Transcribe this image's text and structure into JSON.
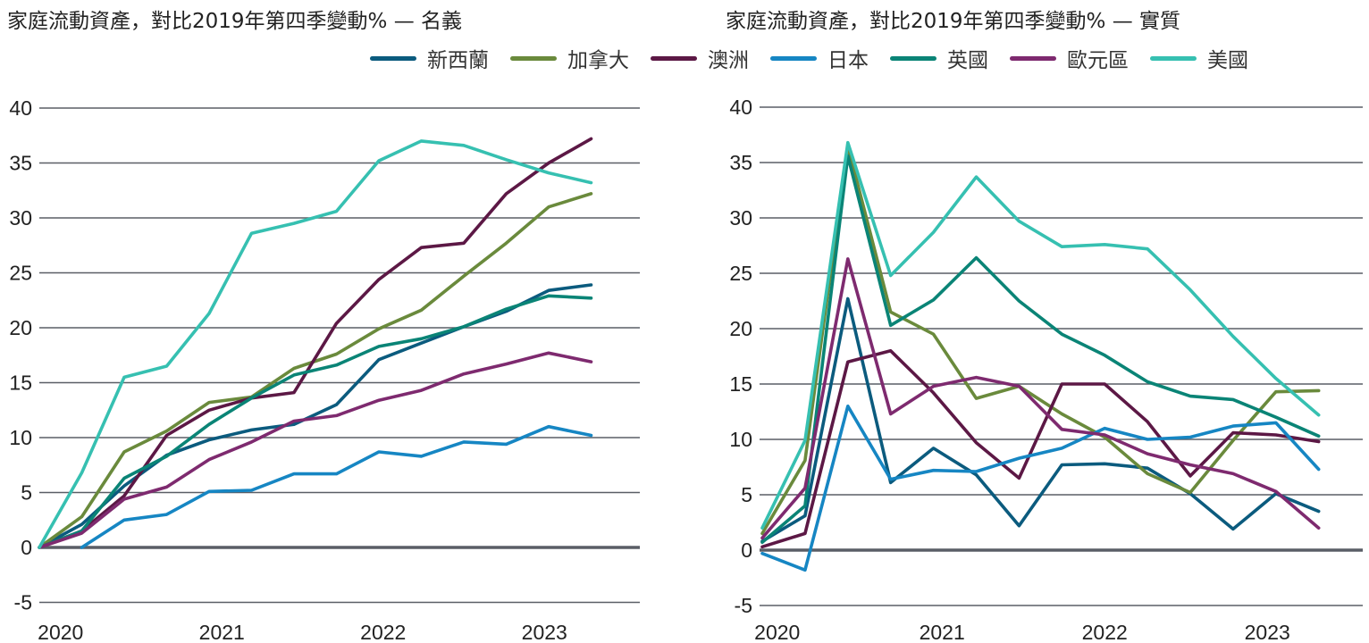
{
  "chart_data": [
    {
      "type": "line",
      "title": "家庭流動資產，對比2019年第四季變動% — 名義",
      "ylim": [
        -5,
        40
      ],
      "yticks": [
        -5,
        0,
        5,
        10,
        15,
        20,
        25,
        30,
        35,
        40
      ],
      "xtick_labels": [
        "2020",
        "2021",
        "2022",
        "2023"
      ],
      "grid": true,
      "x": [
        "2019Q4",
        "2020Q1",
        "2020Q2",
        "2020Q3",
        "2020Q4",
        "2021Q1",
        "2021Q2",
        "2021Q3",
        "2021Q4",
        "2022Q1",
        "2022Q2",
        "2022Q3",
        "2022Q4",
        "2023Q1"
      ],
      "series": [
        {
          "name": "新西蘭",
          "values": [
            0,
            2.1,
            5.6,
            8.4,
            9.8,
            10.7,
            11.2,
            13.0,
            17.1,
            18.6,
            20.1,
            21.5,
            23.4,
            23.9
          ]
        },
        {
          "name": "加拿大",
          "values": [
            0,
            2.8,
            8.7,
            10.6,
            13.2,
            13.7,
            16.3,
            17.6,
            19.9,
            21.6,
            24.7,
            27.7,
            31.0,
            32.2
          ]
        },
        {
          "name": "澳洲",
          "values": [
            0,
            1.5,
            4.7,
            10.2,
            12.5,
            13.6,
            14.1,
            20.4,
            24.4,
            27.3,
            27.7,
            32.2,
            35.0,
            37.2
          ]
        },
        {
          "name": "日本",
          "values": [
            null,
            0,
            2.5,
            3.0,
            5.1,
            5.2,
            6.7,
            6.7,
            8.7,
            8.3,
            9.6,
            9.4,
            11.0,
            10.2
          ]
        },
        {
          "name": "英國",
          "values": [
            0,
            1.5,
            6.3,
            8.3,
            11.2,
            13.6,
            15.7,
            16.6,
            18.3,
            19.0,
            20.1,
            21.7,
            22.9,
            22.7
          ]
        },
        {
          "name": "歐元區",
          "values": [
            0,
            1.3,
            4.4,
            5.5,
            8.0,
            9.6,
            11.5,
            12.0,
            13.4,
            14.3,
            15.8,
            16.7,
            17.7,
            16.9
          ]
        },
        {
          "name": "美國",
          "values": [
            0,
            6.8,
            15.5,
            16.5,
            21.3,
            28.6,
            29.5,
            30.6,
            35.2,
            37.0,
            36.6,
            35.3,
            34.1,
            33.2
          ]
        }
      ]
    },
    {
      "type": "line",
      "title": "家庭流動資產，對比2019年第四季變動% — 實質",
      "ylim": [
        -5,
        40
      ],
      "yticks": [
        -5,
        0,
        5,
        10,
        15,
        20,
        25,
        30,
        35,
        40
      ],
      "xtick_labels": [
        "2020",
        "2021",
        "2022",
        "2023"
      ],
      "grid": true,
      "x": [
        "2019Q4",
        "2020Q1",
        "2020Q2",
        "2020Q3",
        "2020Q4",
        "2021Q1",
        "2021Q2",
        "2021Q3",
        "2021Q4",
        "2022Q1",
        "2022Q2",
        "2022Q3",
        "2022Q4",
        "2023Q1"
      ],
      "series": [
        {
          "name": "新西蘭",
          "values": [
            0.8,
            3.1,
            22.7,
            6.1,
            9.2,
            6.8,
            2.2,
            7.7,
            7.8,
            7.4,
            5.1,
            1.9,
            5.1,
            3.5
          ]
        },
        {
          "name": "加拿大",
          "values": [
            1.5,
            8.1,
            36.5,
            21.5,
            19.5,
            13.7,
            14.8,
            12.3,
            10.2,
            6.9,
            5.2,
            9.9,
            14.3,
            14.4
          ]
        },
        {
          "name": "澳洲",
          "values": [
            0.3,
            1.5,
            17.0,
            18.0,
            14.2,
            9.7,
            6.5,
            15.0,
            15.0,
            11.6,
            6.7,
            10.6,
            10.4,
            9.8
          ]
        },
        {
          "name": "日本",
          "values": [
            -0.3,
            -1.8,
            13.0,
            6.4,
            7.2,
            7.1,
            8.3,
            9.2,
            11.0,
            10.0,
            10.2,
            11.2,
            11.5,
            7.3
          ]
        },
        {
          "name": "英國",
          "values": [
            0.7,
            4.0,
            35.6,
            20.3,
            22.6,
            26.4,
            22.5,
            19.5,
            17.6,
            15.2,
            13.9,
            13.6,
            12.0,
            10.3
          ]
        },
        {
          "name": "歐元區",
          "values": [
            1.1,
            5.6,
            26.3,
            12.3,
            14.8,
            15.6,
            14.8,
            10.9,
            10.4,
            8.7,
            7.7,
            6.9,
            5.3,
            2.0
          ]
        },
        {
          "name": "美國",
          "values": [
            2.0,
            9.9,
            36.8,
            24.8,
            28.7,
            33.7,
            29.7,
            27.4,
            27.6,
            27.2,
            23.5,
            19.3,
            15.5,
            12.2
          ]
        }
      ]
    }
  ],
  "legend": [
    {
      "label": "新西蘭",
      "color": "#0b5b7e"
    },
    {
      "label": "加拿大",
      "color": "#6a8a3c"
    },
    {
      "label": "澳洲",
      "color": "#5c1845"
    },
    {
      "label": "日本",
      "color": "#1686c3"
    },
    {
      "label": "英國",
      "color": "#0a8476"
    },
    {
      "label": "歐元區",
      "color": "#7e2a6f"
    },
    {
      "label": "美國",
      "color": "#36c0b1"
    }
  ],
  "grid_color": "#5a5e66"
}
